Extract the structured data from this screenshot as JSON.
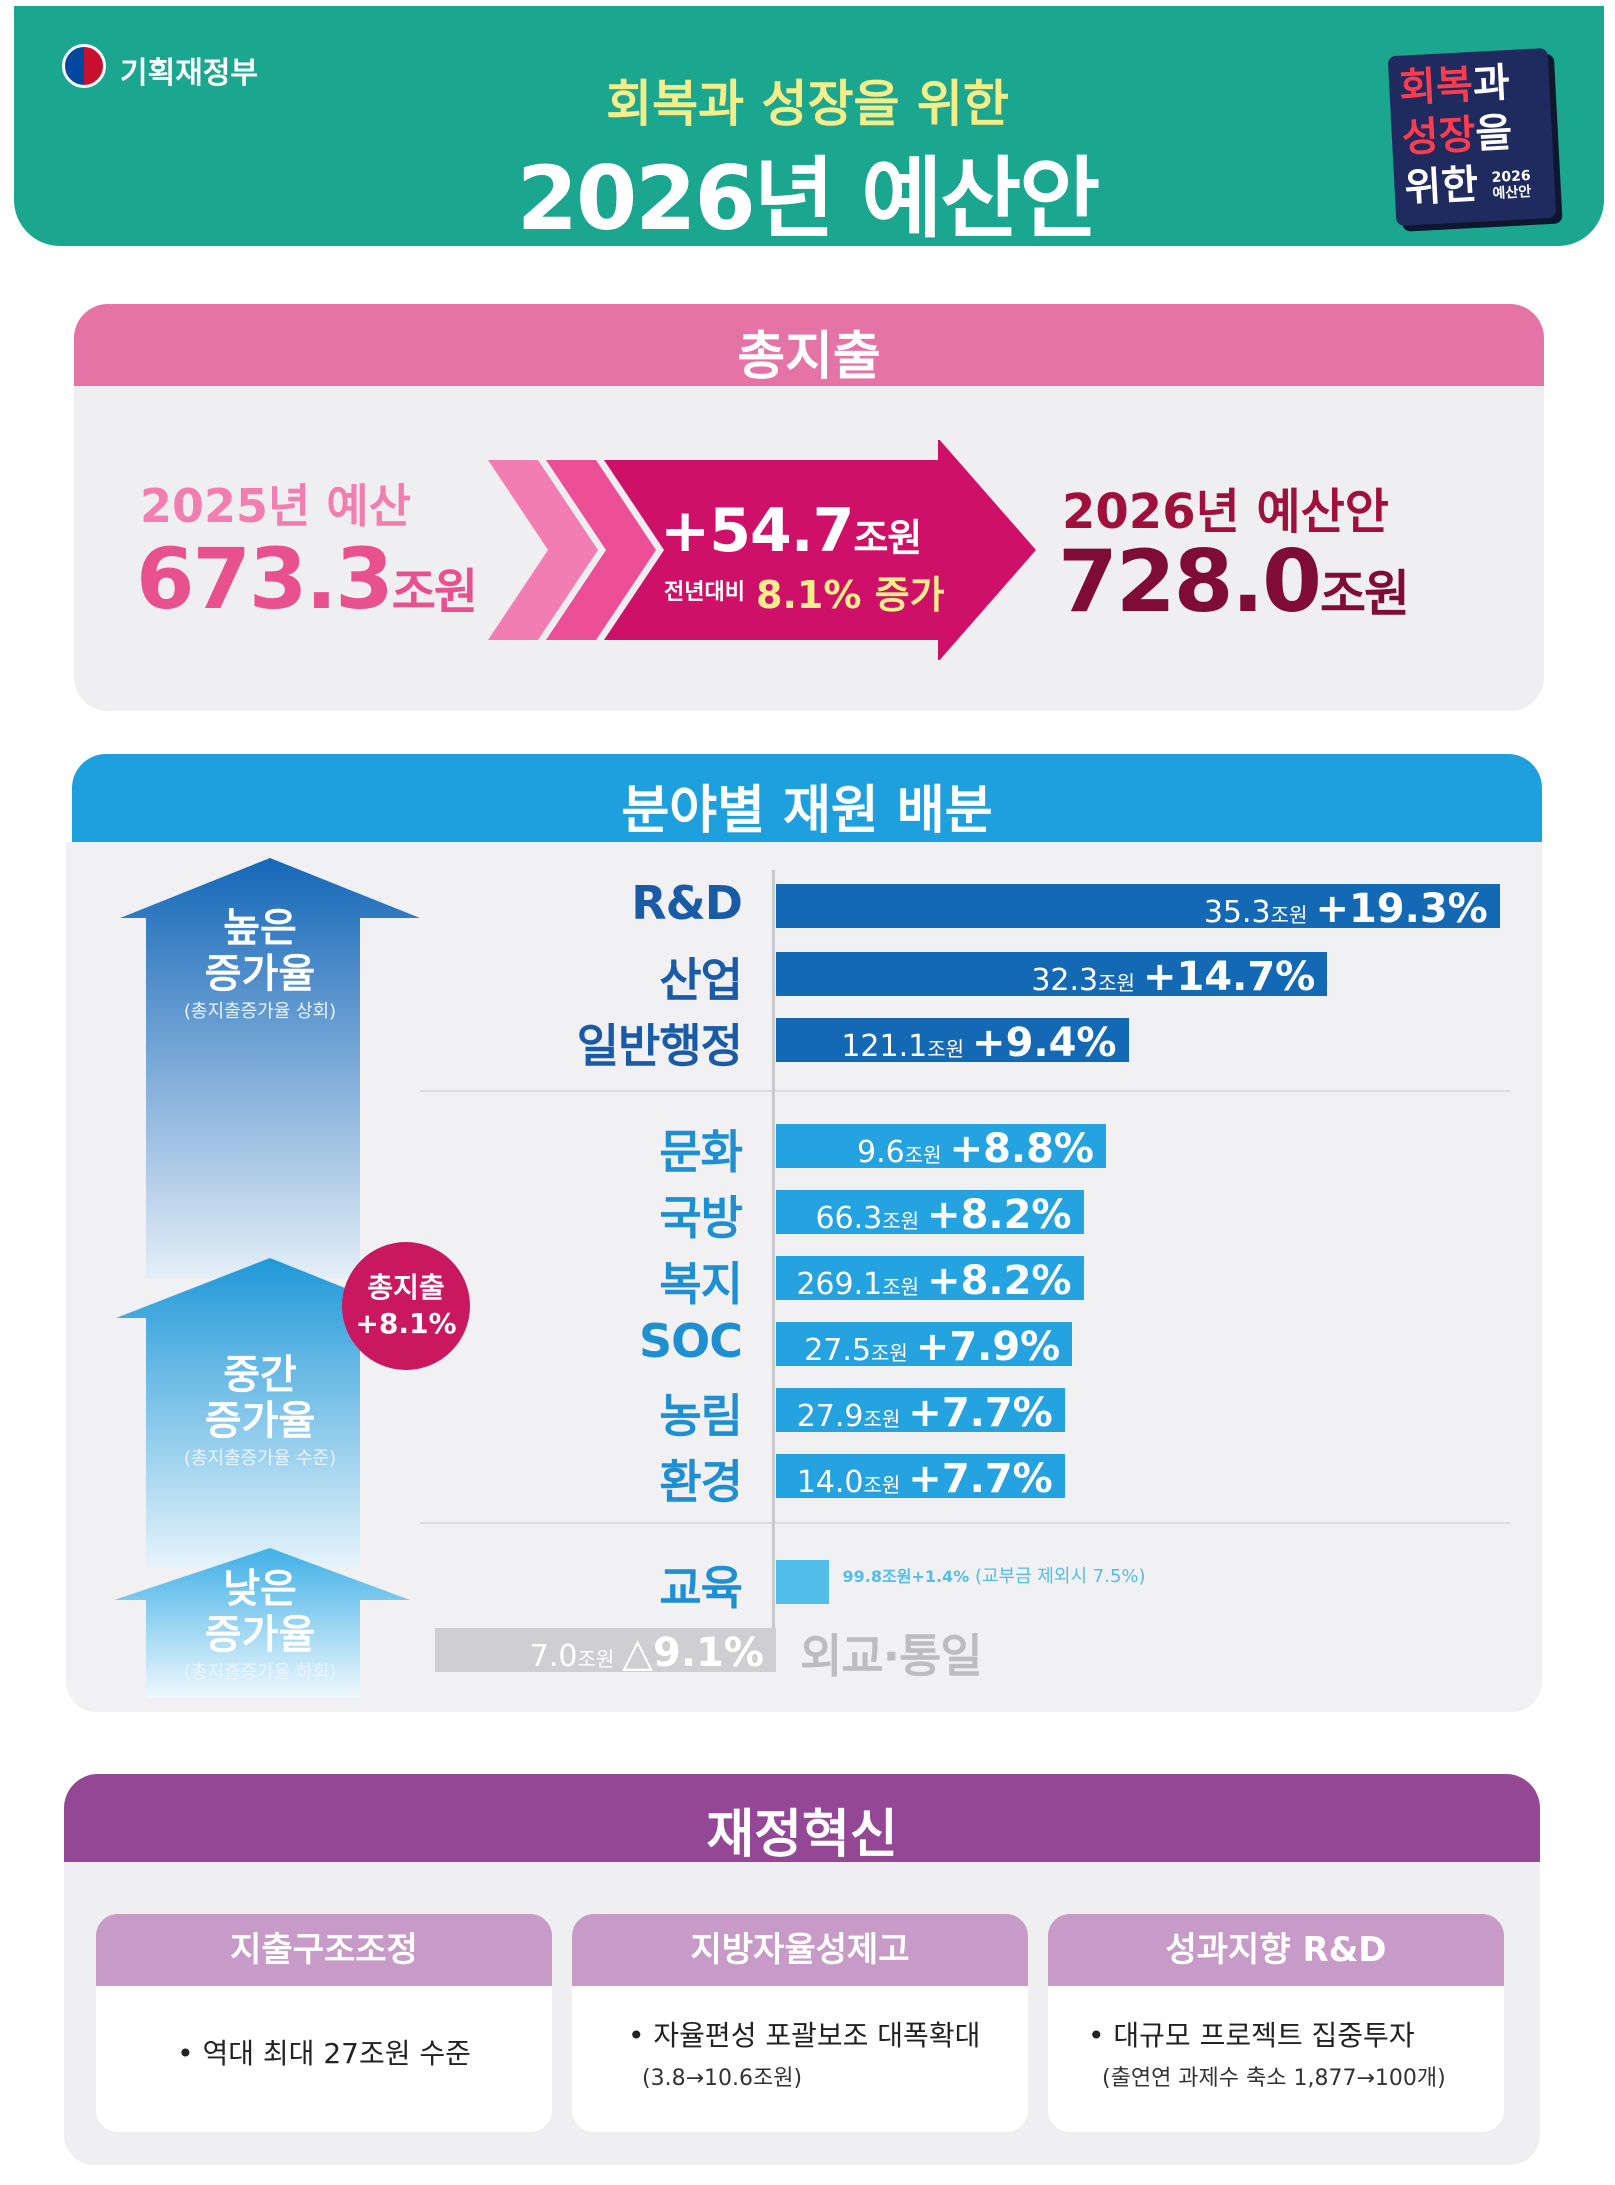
{
  "header": {
    "ministry": "기획재정부",
    "subtitle": "회복과 성장을 위한",
    "title": "2026년 예산안",
    "emblem": {
      "line1_red": "회복",
      "line1_white": "과",
      "line2_red": "성장",
      "line2_white": "을",
      "line3_white": "위한",
      "year": "2026",
      "label": "예산안"
    }
  },
  "total_spending": {
    "title": "총지출",
    "prev_label": "2025년 예산",
    "prev_value": "673.3",
    "prev_unit": "조원",
    "increase_value": "+54.7",
    "increase_unit": "조원",
    "increase_note_label": "전년대비",
    "increase_note_value": "8.1% 증가",
    "next_label": "2026년 예산안",
    "next_value": "728.0",
    "next_unit": "조원"
  },
  "allocation": {
    "title": "분야별 재원 배분",
    "tiers": {
      "high": {
        "name1": "높은",
        "name2": "증가율",
        "note": "(총지출증가율 상회)"
      },
      "mid": {
        "name1": "중간",
        "name2": "증가율",
        "note": "(총지출증가율 수준)"
      },
      "low": {
        "name1": "낮은",
        "name2": "증가율",
        "note": "(총지출증가율 하회)"
      }
    },
    "total_badge": {
      "line1": "총지출",
      "line2": "+8.1%"
    }
  },
  "chart_data": {
    "type": "bar",
    "title": "분야별 재원 배분",
    "unit": "조원",
    "categories": [
      "R&D",
      "산업",
      "일반행정",
      "문화",
      "국방",
      "복지",
      "SOC",
      "농림",
      "환경",
      "교육",
      "외교·통일"
    ],
    "amounts": [
      "35.3",
      "32.3",
      "121.1",
      "9.6",
      "66.3",
      "269.1",
      "27.5",
      "27.9",
      "14.0",
      "99.8",
      "7.0"
    ],
    "growth_labels": [
      "+19.3%",
      "+14.7%",
      "+9.4%",
      "+8.8%",
      "+8.2%",
      "+8.2%",
      "+7.9%",
      "+7.7%",
      "+7.7%",
      "+1.4%",
      "△9.1%"
    ],
    "growth_rates": [
      19.3,
      14.7,
      9.4,
      8.8,
      8.2,
      8.2,
      7.9,
      7.7,
      7.7,
      1.4,
      -9.1
    ],
    "colors": [
      "#1469b5",
      "#1469b5",
      "#1469b5",
      "#25a3e0",
      "#25a3e0",
      "#25a3e0",
      "#25a3e0",
      "#25a3e0",
      "#25a3e0",
      "#52bde8",
      "#cfcfd1"
    ],
    "category_colors": [
      "#1a5ba5",
      "#1a5ba5",
      "#1a5ba5",
      "#1e8fd0",
      "#1e8fd0",
      "#1e8fd0",
      "#1e8fd0",
      "#1e8fd0",
      "#1e8fd0",
      "#1e8fd0",
      "#bdbdbf"
    ],
    "notes": {
      "교육": "(교부금 제외시 7.5%)"
    }
  },
  "innovation": {
    "title": "재정혁신",
    "cards": [
      {
        "title": "지출구조조정",
        "line": "• 역대 최대 27조원 수준",
        "sub": ""
      },
      {
        "title": "지방자율성제고",
        "line": "• 자율편성 포괄보조 대폭확대",
        "sub": "(3.8→10.6조원)"
      },
      {
        "title": "성과지향 R&D",
        "line": "• 대규모 프로젝트 집중투자",
        "sub": "(출연연 과제수 축소 1,877→100개)"
      }
    ]
  }
}
